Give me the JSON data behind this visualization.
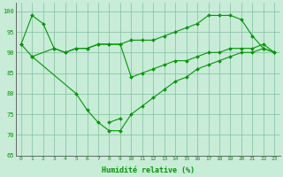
{
  "title": "",
  "xlabel": "Humidité relative (%)",
  "ylabel": "",
  "xlim": [
    -0.5,
    23.5
  ],
  "ylim": [
    65,
    102
  ],
  "yticks": [
    65,
    70,
    75,
    80,
    85,
    90,
    95,
    100
  ],
  "xticks": [
    0,
    1,
    2,
    3,
    4,
    5,
    6,
    7,
    8,
    9,
    10,
    11,
    12,
    13,
    14,
    15,
    16,
    17,
    18,
    19,
    20,
    21,
    22,
    23
  ],
  "bg_color": "#c8ecd8",
  "grid_color": "#7fbf9f",
  "line_color": "#009900",
  "series": [
    {
      "x": [
        0,
        1,
        2,
        3,
        4,
        5,
        6,
        7,
        8,
        9,
        10,
        11,
        12,
        13,
        14,
        15,
        16,
        17,
        18,
        19,
        20,
        21,
        22,
        23
      ],
      "y": [
        92,
        99,
        97,
        91,
        90,
        91,
        91,
        92,
        92,
        92,
        93,
        93,
        93,
        94,
        95,
        96,
        97,
        99,
        99,
        99,
        98,
        94,
        91,
        90
      ]
    },
    {
      "x": [
        0,
        1,
        3,
        4,
        5,
        6,
        7,
        8,
        9,
        10,
        11,
        12,
        13,
        14,
        15,
        16,
        17,
        18,
        19,
        20,
        21,
        22,
        23
      ],
      "y": [
        92,
        89,
        91,
        90,
        91,
        91,
        92,
        92,
        92,
        84,
        85,
        86,
        87,
        88,
        88,
        89,
        90,
        90,
        91,
        91,
        91,
        92,
        90
      ]
    },
    {
      "x": [
        1,
        5,
        6,
        7,
        8,
        9,
        10,
        11,
        12,
        13,
        14,
        15,
        16,
        17,
        18,
        19,
        20,
        21,
        22,
        23
      ],
      "y": [
        89,
        80,
        76,
        73,
        71,
        71,
        75,
        77,
        79,
        81,
        83,
        84,
        86,
        87,
        88,
        89,
        90,
        90,
        91,
        90
      ]
    },
    {
      "x": [
        8,
        9
      ],
      "y": [
        73,
        74
      ]
    }
  ]
}
